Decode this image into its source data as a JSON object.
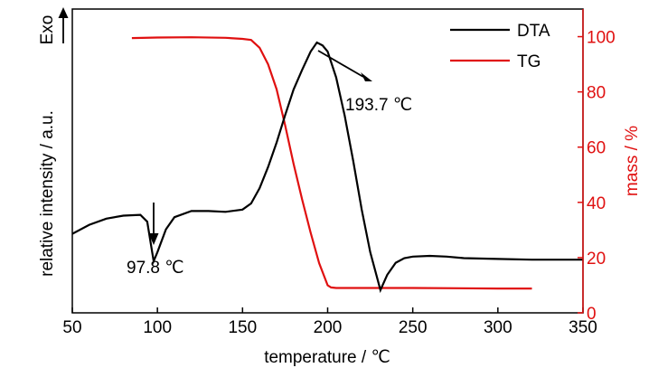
{
  "chart_data": {
    "type": "line",
    "xlabel": "temperature / ℃",
    "ylabel_left": "relative intensity / a.u.",
    "ylabel_right": "mass / %",
    "exo_label": "Exo",
    "xlim": [
      50,
      350
    ],
    "x_ticks": [
      "50",
      "100",
      "150",
      "200",
      "250",
      "300",
      "350"
    ],
    "ylim_right": [
      0,
      110
    ],
    "y_ticks_right": [
      "0",
      "20",
      "40",
      "60",
      "80",
      "100"
    ],
    "colors": {
      "DTA": "#000000",
      "TG": "#e01010"
    },
    "legend_position": "top-right",
    "series": [
      {
        "name": "DTA",
        "axis": "left",
        "x": [
          50,
          60,
          70,
          80,
          90,
          94,
          97.8,
          100,
          105,
          110,
          120,
          130,
          140,
          150,
          155,
          160,
          165,
          170,
          175,
          180,
          185,
          190,
          193.7,
          197,
          200,
          205,
          210,
          215,
          220,
          225,
          231,
          235,
          240,
          245,
          250,
          260,
          270,
          280,
          300,
          320,
          350
        ],
        "y": [
          0.52,
          0.58,
          0.62,
          0.64,
          0.645,
          0.6,
          0.34,
          0.4,
          0.55,
          0.63,
          0.67,
          0.67,
          0.665,
          0.68,
          0.72,
          0.82,
          0.96,
          1.12,
          1.3,
          1.47,
          1.6,
          1.72,
          1.78,
          1.76,
          1.72,
          1.55,
          1.3,
          1.0,
          0.68,
          0.4,
          0.15,
          0.25,
          0.33,
          0.36,
          0.37,
          0.375,
          0.37,
          0.36,
          0.355,
          0.35,
          0.35
        ]
      },
      {
        "name": "TG",
        "axis": "right",
        "x": [
          85,
          100,
          120,
          140,
          150,
          155,
          160,
          165,
          170,
          175,
          180,
          185,
          190,
          195,
          200,
          202,
          205,
          210,
          250,
          300,
          320
        ],
        "y": [
          99.5,
          99.7,
          99.8,
          99.6,
          99.2,
          98.8,
          96.0,
          90.0,
          81.0,
          68.0,
          54.0,
          41.0,
          29.0,
          18.0,
          10.0,
          9.2,
          9.0,
          9.0,
          9.0,
          8.8,
          8.8
        ]
      }
    ],
    "annotations": [
      {
        "text": "97.8 ℃"
      },
      {
        "text": "193.7 ℃"
      }
    ]
  }
}
